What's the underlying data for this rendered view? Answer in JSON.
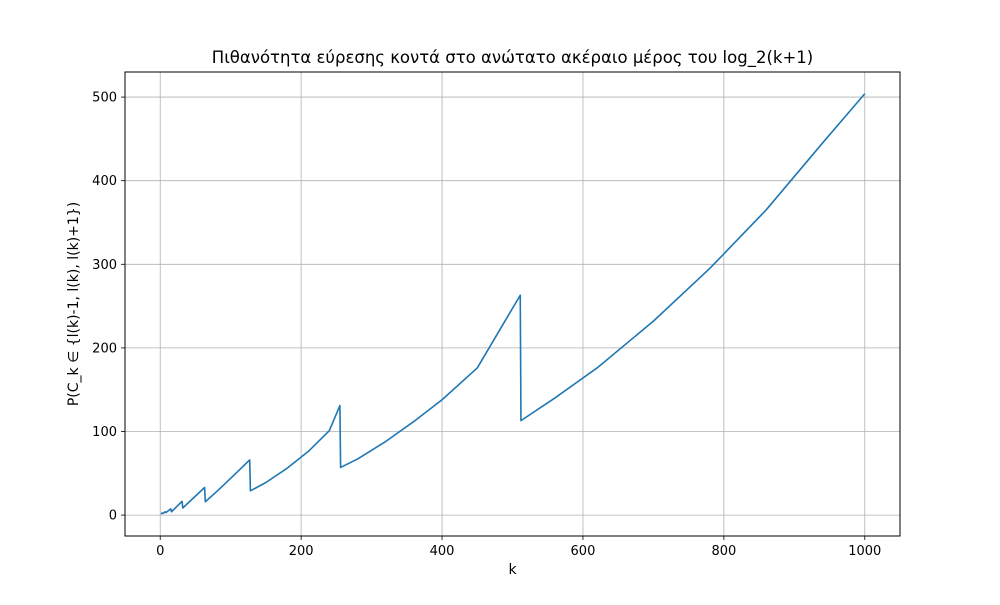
{
  "chart_data": {
    "type": "line",
    "title": "Πιθανότητα εύρεσης κοντά στο ανώτατο ακέραιο μέρος του log_2(k+1)",
    "xlabel": "k",
    "ylabel": "P(C_k ∈ {l(k)-1, l(k), l(k)+1})",
    "xlim": [
      -50,
      1050
    ],
    "ylim": [
      -25,
      530
    ],
    "xticks": [
      0,
      200,
      400,
      600,
      800,
      1000
    ],
    "xtick_labels": [
      "0",
      "200",
      "400",
      "600",
      "800",
      "1000"
    ],
    "yticks": [
      0,
      100,
      200,
      300,
      400,
      500
    ],
    "ytick_labels": [
      "0",
      "100",
      "200",
      "300",
      "400",
      "500"
    ],
    "grid": true,
    "line_color": "#1f77b4",
    "series": [
      {
        "x": [
          1,
          3,
          4,
          7,
          8,
          15,
          16,
          31,
          32,
          63,
          64,
          80,
          100,
          127,
          128,
          150,
          180,
          210,
          240,
          255,
          256,
          280,
          320,
          360,
          400,
          450,
          511,
          512,
          560,
          620,
          700,
          780,
          860,
          940,
          1000
        ],
        "values": [
          1.5,
          2.5,
          2,
          4,
          3,
          7.5,
          4,
          16.5,
          8.5,
          33,
          16,
          28,
          44,
          66,
          29,
          39,
          56,
          76,
          101,
          131,
          57,
          67,
          88,
          112,
          138,
          176,
          263,
          113,
          140,
          176,
          232,
          295,
          365,
          445,
          504
        ]
      }
    ]
  }
}
